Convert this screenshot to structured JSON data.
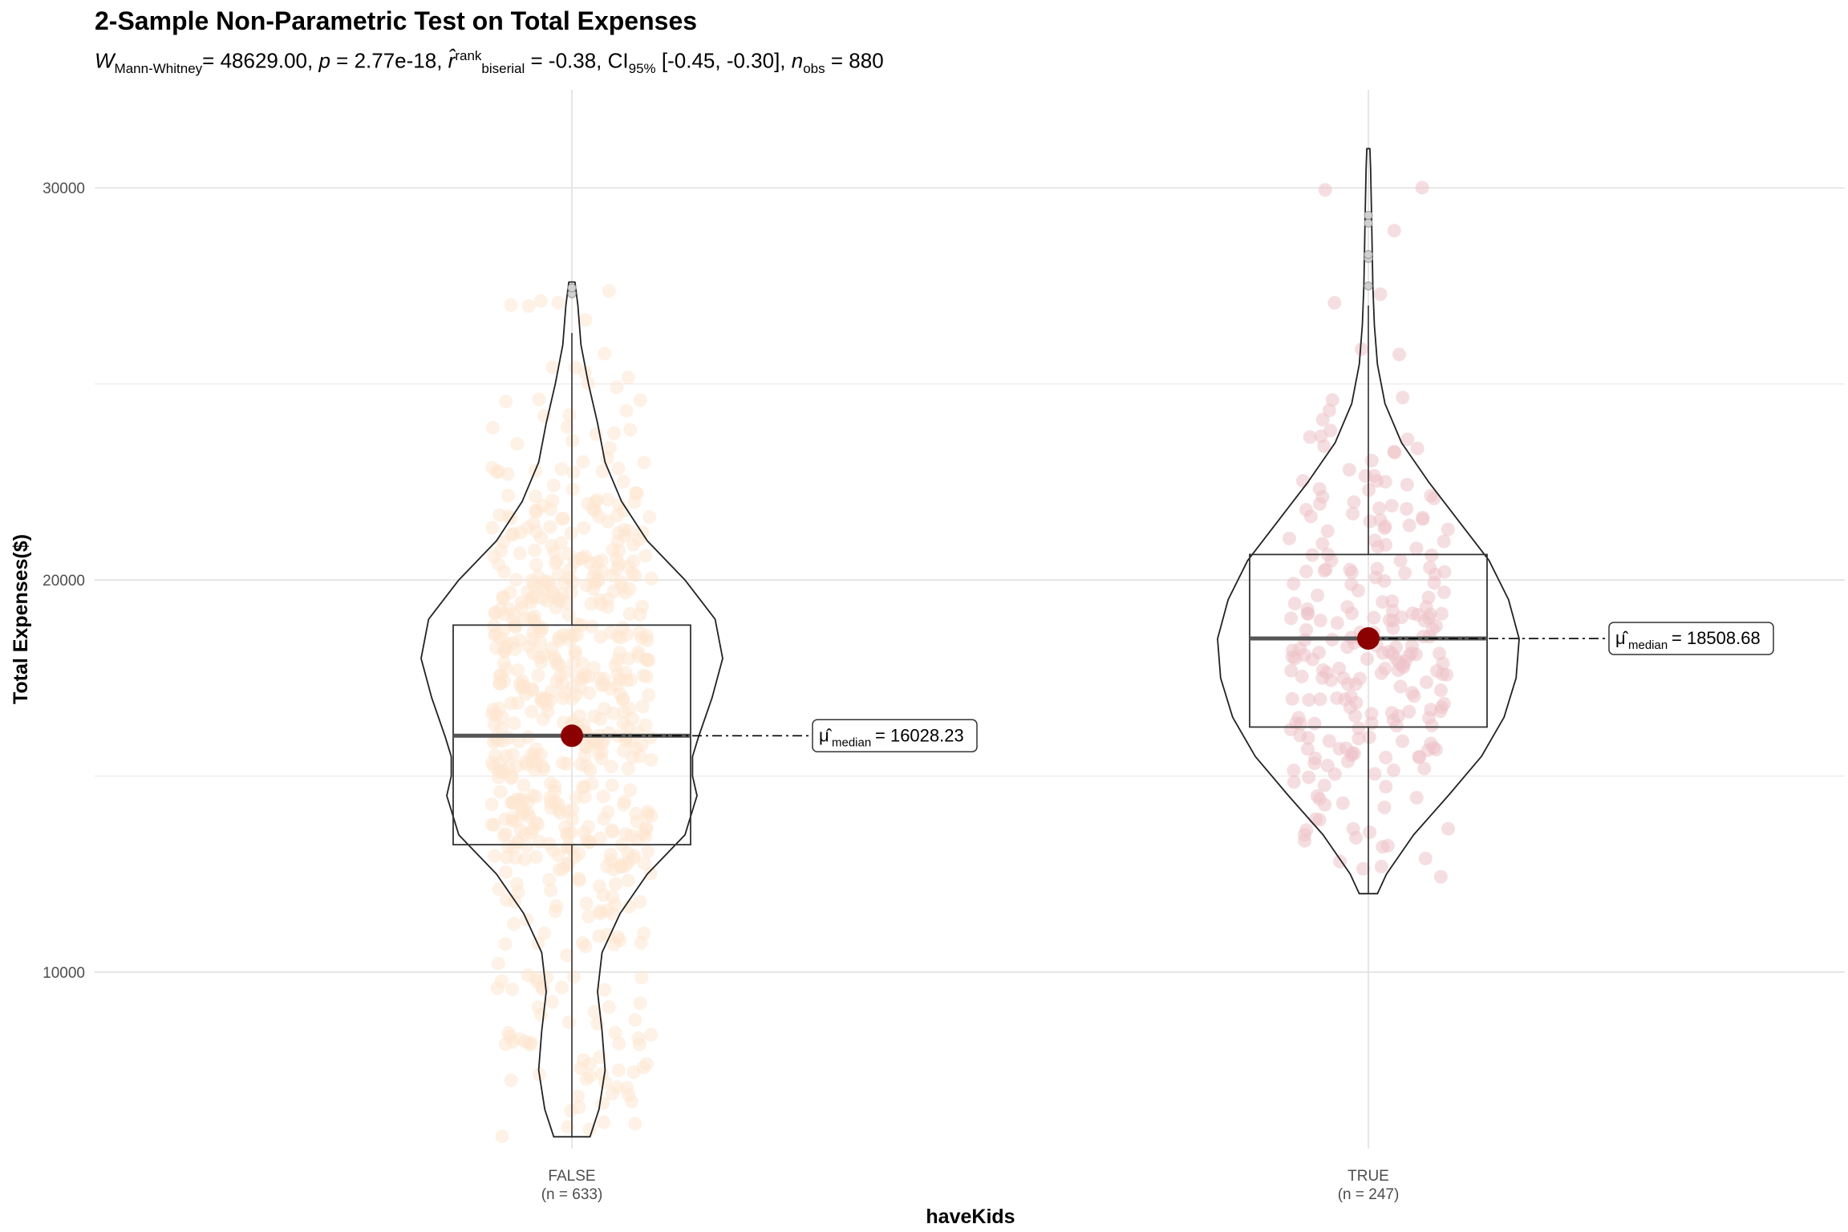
{
  "chart_data": {
    "type": "violin-box-jitter",
    "title": "2-Sample Non-Parametric Test on Total Expenses",
    "subtitle": {
      "stat_symbol": "W",
      "stat_sub": "Mann-Whitney",
      "stat_value": "= 48629.00, ",
      "p_symbol": "p",
      "p_value": " = 2.77e-18, ",
      "effect_symbol": "r̂",
      "effect_sup": "rank",
      "effect_sub": "biserial",
      "effect_value": " = -0.38, CI",
      "ci_sub": "95%",
      "ci_value": " [-0.45, -0.30], ",
      "n_symbol": "n",
      "n_sub": "obs",
      "n_value": " = 880"
    },
    "xlabel": "haveKids",
    "ylabel": "Total Expenses($)",
    "ylim": [
      5500,
      32500
    ],
    "yticks": [
      10000,
      20000,
      30000
    ],
    "ytick_labels": [
      "10000",
      "20000",
      "30000"
    ],
    "grid": true,
    "groups": [
      {
        "name": "FALSE",
        "n_label": "(n = 633)",
        "n": 633,
        "color": "#FDE5CF",
        "min": 5800,
        "q1": 13250,
        "median": 16028.23,
        "q3": 18850,
        "whisker_high": 26300,
        "max": 27600,
        "outliers": [
          27300,
          27450
        ],
        "median_label": "= 16028.23",
        "violin": [
          [
            5800,
            0.12
          ],
          [
            6500,
            0.18
          ],
          [
            7500,
            0.22
          ],
          [
            8500,
            0.2
          ],
          [
            9500,
            0.17
          ],
          [
            10500,
            0.2
          ],
          [
            11500,
            0.32
          ],
          [
            12500,
            0.5
          ],
          [
            13500,
            0.75
          ],
          [
            14500,
            0.83
          ],
          [
            15000,
            0.8
          ],
          [
            15500,
            0.8
          ],
          [
            16000,
            0.84
          ],
          [
            17000,
            0.93
          ],
          [
            18000,
            1.0
          ],
          [
            19000,
            0.95
          ],
          [
            20000,
            0.75
          ],
          [
            21000,
            0.5
          ],
          [
            22000,
            0.33
          ],
          [
            23000,
            0.22
          ],
          [
            24000,
            0.17
          ],
          [
            25000,
            0.11
          ],
          [
            26000,
            0.06
          ],
          [
            27000,
            0.04
          ],
          [
            27600,
            0.02
          ]
        ]
      },
      {
        "name": "TRUE",
        "n_label": "(n = 247)",
        "n": 247,
        "color": "#EDC2C9",
        "min": 12000,
        "q1": 16250,
        "median": 18508.68,
        "q3": 20650,
        "whisker_high": 27000,
        "max": 31000,
        "outliers": [
          27500,
          28200,
          28300,
          29100,
          29300
        ],
        "median_label": "= 18508.68",
        "violin": [
          [
            12000,
            0.06
          ],
          [
            12500,
            0.12
          ],
          [
            13500,
            0.3
          ],
          [
            14500,
            0.53
          ],
          [
            15500,
            0.75
          ],
          [
            16500,
            0.9
          ],
          [
            17500,
            0.98
          ],
          [
            18500,
            1.0
          ],
          [
            19500,
            0.93
          ],
          [
            20500,
            0.8
          ],
          [
            21500,
            0.6
          ],
          [
            22500,
            0.4
          ],
          [
            23500,
            0.22
          ],
          [
            24500,
            0.11
          ],
          [
            25500,
            0.06
          ],
          [
            26500,
            0.04
          ],
          [
            27500,
            0.03
          ],
          [
            28500,
            0.025
          ],
          [
            29500,
            0.02
          ],
          [
            30500,
            0.015
          ],
          [
            31000,
            0.01
          ]
        ]
      }
    ],
    "median_marker_color": "#8B0000",
    "median_symbol": "μ̂",
    "median_symbol_sub": "median"
  }
}
